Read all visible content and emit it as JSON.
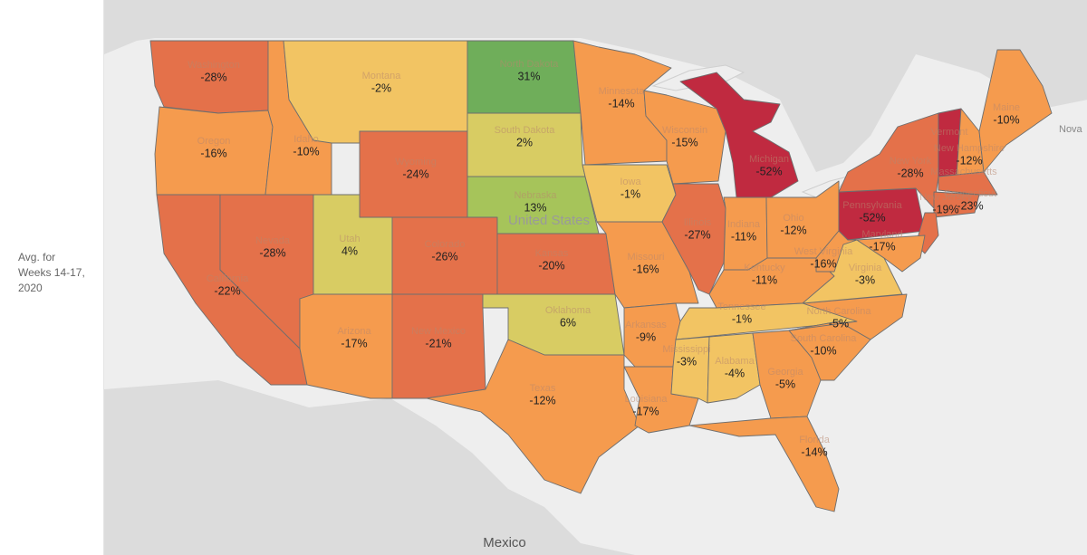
{
  "legend_label": "Avg. for\nWeeks 14-17,\n2020",
  "colors": {
    "strong_decline": "#c02a40",
    "decline": "#e4714a",
    "mild_decline": "#f59b4e",
    "neutral": "#f2c463",
    "mild_growth": "#d8cc63",
    "growth": "#a6c45a",
    "strong_growth": "#6fae5a",
    "land": "#dcdcdc",
    "water": "#eeeeee"
  },
  "geo_labels": {
    "country": "United States",
    "neighbor_south": "Mexico",
    "neighbor_east": "Nova"
  },
  "states": [
    {
      "id": "WA",
      "name": "Washington",
      "value": "-28%"
    },
    {
      "id": "OR",
      "name": "Oregon",
      "value": "-16%"
    },
    {
      "id": "CA",
      "name": "California",
      "value": "-22%"
    },
    {
      "id": "ID",
      "name": "Idaho",
      "value": "-10%"
    },
    {
      "id": "NV",
      "name": "Nevada",
      "value": "-28%"
    },
    {
      "id": "MT",
      "name": "Montana",
      "value": "-2%"
    },
    {
      "id": "WY",
      "name": "Wyoming",
      "value": "-24%"
    },
    {
      "id": "UT",
      "name": "Utah",
      "value": "4%"
    },
    {
      "id": "CO",
      "name": "Colorado",
      "value": "-26%"
    },
    {
      "id": "AZ",
      "name": "Arizona",
      "value": "-17%"
    },
    {
      "id": "NM",
      "name": "New Mexico",
      "value": "-21%"
    },
    {
      "id": "ND",
      "name": "North Dakota",
      "value": "31%"
    },
    {
      "id": "SD",
      "name": "South Dakota",
      "value": "2%"
    },
    {
      "id": "NE",
      "name": "Nebraska",
      "value": "13%"
    },
    {
      "id": "KS",
      "name": "Kansas",
      "value": "-20%"
    },
    {
      "id": "OK",
      "name": "Oklahoma",
      "value": "6%"
    },
    {
      "id": "TX",
      "name": "Texas",
      "value": "-12%"
    },
    {
      "id": "MN",
      "name": "Minnesota",
      "value": "-14%"
    },
    {
      "id": "IA",
      "name": "Iowa",
      "value": "-1%"
    },
    {
      "id": "MO",
      "name": "Missouri",
      "value": "-16%"
    },
    {
      "id": "AR",
      "name": "Arkansas",
      "value": "-9%"
    },
    {
      "id": "LA",
      "name": "Louisiana",
      "value": "-17%"
    },
    {
      "id": "WI",
      "name": "Wisconsin",
      "value": "-15%"
    },
    {
      "id": "IL",
      "name": "Illinois",
      "value": "-27%"
    },
    {
      "id": "MI",
      "name": "Michigan",
      "value": "-52%"
    },
    {
      "id": "IN",
      "name": "Indiana",
      "value": "-11%"
    },
    {
      "id": "OH",
      "name": "Ohio",
      "value": "-12%"
    },
    {
      "id": "KY",
      "name": "Kentucky",
      "value": "-11%"
    },
    {
      "id": "TN",
      "name": "Tennessee",
      "value": "-1%"
    },
    {
      "id": "MS",
      "name": "Mississippi",
      "value": "-3%"
    },
    {
      "id": "AL",
      "name": "Alabama",
      "value": "-4%"
    },
    {
      "id": "GA",
      "name": "Georgia",
      "value": "-5%"
    },
    {
      "id": "FL",
      "name": "Florida",
      "value": "-14%"
    },
    {
      "id": "SC",
      "name": "South Carolina",
      "value": "-10%"
    },
    {
      "id": "NC",
      "name": "North Carolina",
      "value": "-5%"
    },
    {
      "id": "VA",
      "name": "Virginia",
      "value": "-3%"
    },
    {
      "id": "WV",
      "name": "West Virginia",
      "value": "-16%"
    },
    {
      "id": "PA",
      "name": "Pennsylvania",
      "value": "-52%"
    },
    {
      "id": "NY",
      "name": "New York",
      "value": "-28%"
    },
    {
      "id": "VT",
      "name": "Vermont",
      "value": ""
    },
    {
      "id": "NH",
      "name": "New Hampshire",
      "value": "-12%"
    },
    {
      "id": "ME",
      "name": "Maine",
      "value": "-10%"
    },
    {
      "id": "MA",
      "name": "Massachusetts",
      "value": ""
    },
    {
      "id": "CT",
      "name": "Connecticut",
      "value": "-23%"
    },
    {
      "id": "NJ",
      "name": "New Jersey",
      "value": "-19%"
    },
    {
      "id": "MD",
      "name": "Maryland",
      "value": "-17%"
    }
  ]
}
